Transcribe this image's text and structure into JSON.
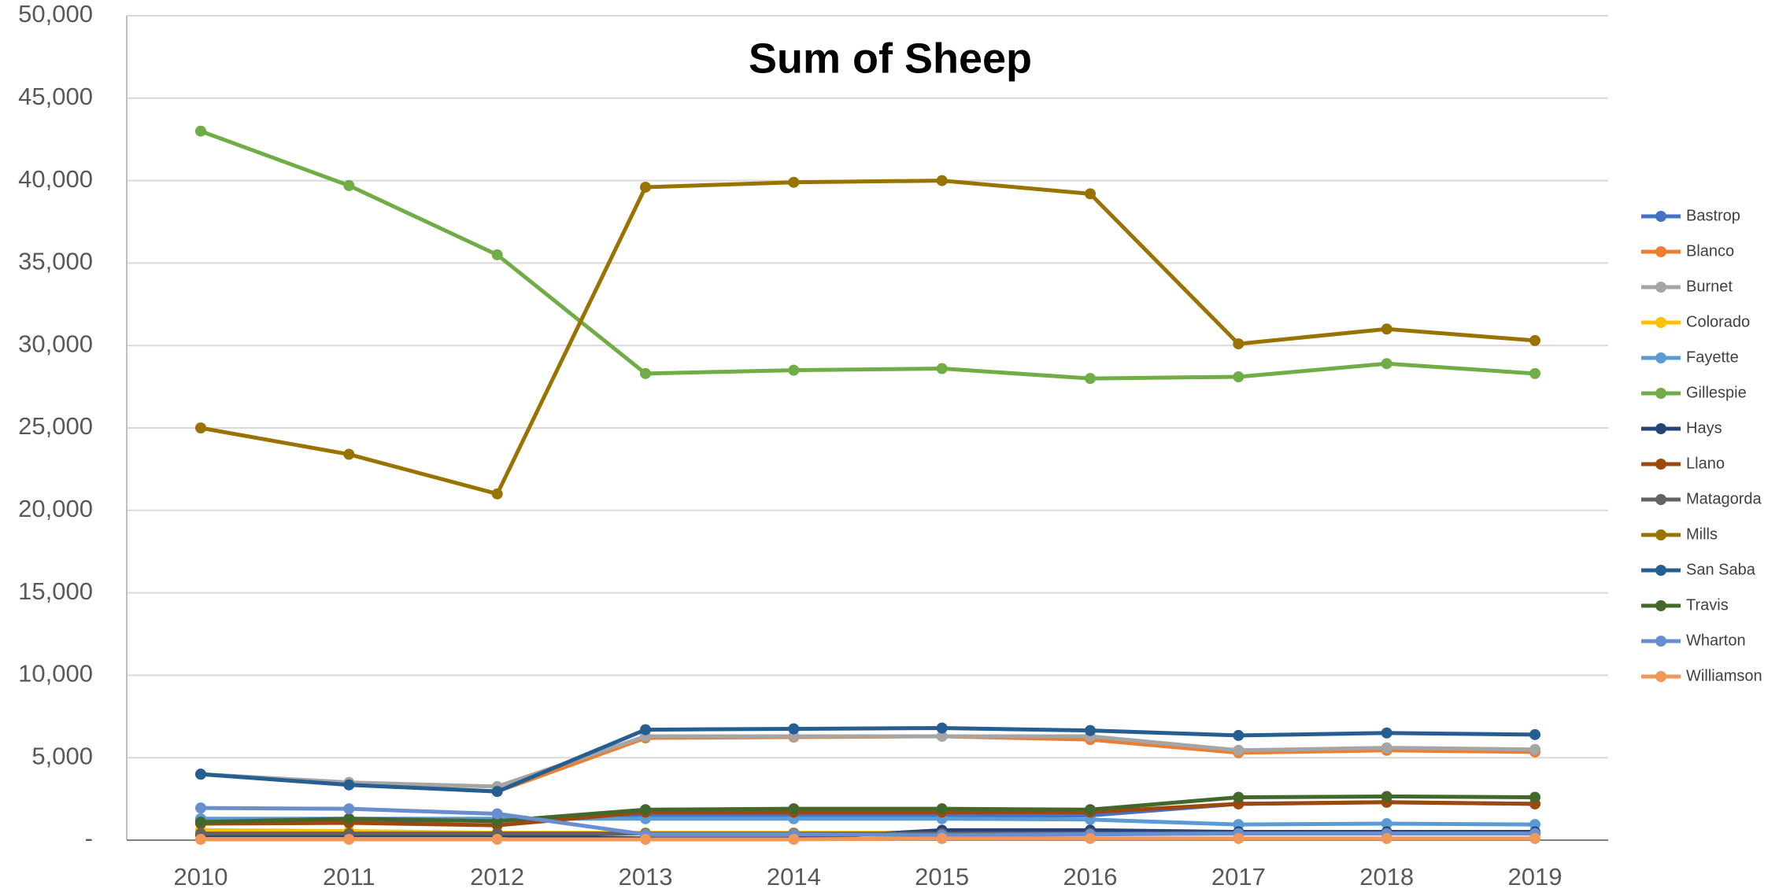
{
  "chart_data": {
    "type": "line",
    "title": "Sum of Sheep",
    "categories": [
      "2010",
      "2011",
      "2012",
      "2013",
      "2014",
      "2015",
      "2016",
      "2017",
      "2018",
      "2019"
    ],
    "ylim": [
      0,
      50000
    ],
    "yticks": [
      {
        "value": 0,
        "label": "-"
      },
      {
        "value": 5000,
        "label": "5,000"
      },
      {
        "value": 10000,
        "label": "10,000"
      },
      {
        "value": 15000,
        "label": "15,000"
      },
      {
        "value": 20000,
        "label": "20,000"
      },
      {
        "value": 25000,
        "label": "25,000"
      },
      {
        "value": 30000,
        "label": "30,000"
      },
      {
        "value": 35000,
        "label": "35,000"
      },
      {
        "value": 40000,
        "label": "40,000"
      },
      {
        "value": 45000,
        "label": "45,000"
      },
      {
        "value": 50000,
        "label": "50,000"
      }
    ],
    "grid": true,
    "legend": "right",
    "series": [
      {
        "name": "Bastrop",
        "color": "#4472c4",
        "values": [
          1200,
          1200,
          1200,
          1500,
          1500,
          1500,
          1500,
          2200,
          2300,
          2200
        ]
      },
      {
        "name": "Blanco",
        "color": "#ed7d31",
        "values": [
          4000,
          3400,
          2950,
          6200,
          6250,
          6300,
          6100,
          5300,
          5450,
          5350
        ]
      },
      {
        "name": "Burnet",
        "color": "#a5a5a5",
        "values": [
          4000,
          3500,
          3250,
          6300,
          6300,
          6300,
          6300,
          5450,
          5600,
          5500
        ]
      },
      {
        "name": "Colorado",
        "color": "#ffc000",
        "values": [
          600,
          550,
          450,
          450,
          450,
          450,
          450,
          450,
          450,
          450
        ]
      },
      {
        "name": "Fayette",
        "color": "#5b9bd5",
        "values": [
          1300,
          1300,
          1300,
          1300,
          1300,
          1300,
          1250,
          950,
          1000,
          950
        ]
      },
      {
        "name": "Gillespie",
        "color": "#70ad47",
        "values": [
          43000,
          39700,
          35500,
          28300,
          28500,
          28600,
          28000,
          28100,
          28900,
          28300
        ]
      },
      {
        "name": "Hays",
        "color": "#264478",
        "values": [
          300,
          300,
          300,
          100,
          100,
          600,
          600,
          500,
          500,
          500
        ]
      },
      {
        "name": "Llano",
        "color": "#9e480e",
        "values": [
          1000,
          1050,
          900,
          1700,
          1700,
          1700,
          1700,
          2200,
          2300,
          2200
        ]
      },
      {
        "name": "Matagorda",
        "color": "#636363",
        "values": [
          400,
          400,
          400,
          400,
          400,
          400,
          400,
          400,
          400,
          400
        ]
      },
      {
        "name": "Mills",
        "color": "#997300",
        "values": [
          25000,
          23400,
          21000,
          39600,
          39900,
          40000,
          39200,
          30100,
          31000,
          30300
        ]
      },
      {
        "name": "San Saba",
        "color": "#255e91",
        "values": [
          4000,
          3350,
          2950,
          6700,
          6750,
          6800,
          6650,
          6350,
          6500,
          6400
        ]
      },
      {
        "name": "Travis",
        "color": "#43682b",
        "values": [
          1100,
          1300,
          1150,
          1850,
          1900,
          1900,
          1850,
          2600,
          2650,
          2600
        ]
      },
      {
        "name": "Wharton",
        "color": "#698ed0",
        "values": [
          1950,
          1900,
          1600,
          350,
          350,
          300,
          350,
          400,
          400,
          400
        ]
      },
      {
        "name": "Williamson",
        "color": "#f1975a",
        "values": [
          50,
          50,
          50,
          50,
          50,
          100,
          100,
          100,
          100,
          100
        ]
      }
    ]
  }
}
